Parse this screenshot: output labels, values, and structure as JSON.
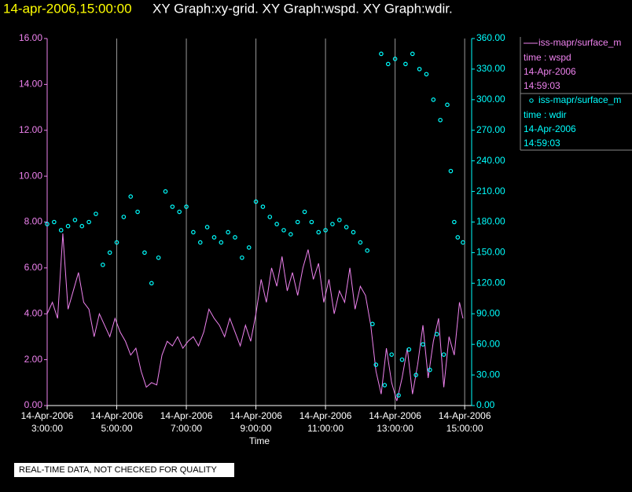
{
  "chart_data": {
    "type": "xy",
    "title_time": "14-apr-2006,15:00:00",
    "title": "XY Graph:xy-grid.  XY Graph:wspd.  XY Graph:wdir.",
    "xlabel": "Time",
    "footer": "REAL-TIME DATA, NOT CHECKED FOR QUALITY",
    "xlim": [
      3,
      15.2
    ],
    "xticks": [
      {
        "value": 3,
        "label": "14-Apr-2006 3:00:00"
      },
      {
        "value": 5,
        "label": "14-Apr-2006 5:00:00"
      },
      {
        "value": 7,
        "label": "14-Apr-2006 7:00:00"
      },
      {
        "value": 9,
        "label": "14-Apr-2006 9:00:00"
      },
      {
        "value": 11,
        "label": "14-Apr-2006 11:00:00"
      },
      {
        "value": 13,
        "label": "14-Apr-2006 13:00:00"
      },
      {
        "value": 15,
        "label": "14-Apr-2006 15:00:00"
      }
    ],
    "ylim": [
      0,
      16
    ],
    "yticks": [
      {
        "value": 0,
        "label": "0.00"
      },
      {
        "value": 2,
        "label": "2.00"
      },
      {
        "value": 4,
        "label": "4.00"
      },
      {
        "value": 6,
        "label": "6.00"
      },
      {
        "value": 8,
        "label": "8.00"
      },
      {
        "value": 10,
        "label": "10.00"
      },
      {
        "value": 12,
        "label": "12.00"
      },
      {
        "value": 14,
        "label": "14.00"
      },
      {
        "value": 16,
        "label": "16.00"
      }
    ],
    "y2lim": [
      0,
      360
    ],
    "y2ticks": [
      {
        "value": 0,
        "label": "0.00"
      },
      {
        "value": 30,
        "label": "30.00"
      },
      {
        "value": 60,
        "label": "60.00"
      },
      {
        "value": 90,
        "label": "90.00"
      },
      {
        "value": 120,
        "label": "120.00"
      },
      {
        "value": 150,
        "label": "150.00"
      },
      {
        "value": 180,
        "label": "180.00"
      },
      {
        "value": 210,
        "label": "210.00"
      },
      {
        "value": 240,
        "label": "240.00"
      },
      {
        "value": 270,
        "label": "270.00"
      },
      {
        "value": 300,
        "label": "300.00"
      },
      {
        "value": 330,
        "label": "330.00"
      },
      {
        "value": 360,
        "label": "360.00"
      }
    ],
    "grid": "x",
    "series": [
      {
        "name": "iss-mapr/surface_m",
        "kind": "line",
        "color": "#ee82ee",
        "legend_lines": [
          "time : wspd",
          "14-Apr-2006",
          "14:59:03"
        ],
        "x": [
          3.0,
          3.15,
          3.3,
          3.45,
          3.6,
          3.75,
          3.9,
          4.05,
          4.2,
          4.35,
          4.5,
          4.65,
          4.8,
          4.95,
          5.1,
          5.25,
          5.4,
          5.55,
          5.7,
          5.85,
          6.0,
          6.15,
          6.3,
          6.45,
          6.6,
          6.75,
          6.9,
          7.05,
          7.2,
          7.35,
          7.5,
          7.65,
          7.8,
          7.95,
          8.1,
          8.25,
          8.4,
          8.55,
          8.7,
          8.85,
          9.0,
          9.15,
          9.3,
          9.45,
          9.6,
          9.75,
          9.9,
          10.05,
          10.2,
          10.35,
          10.5,
          10.65,
          10.8,
          10.95,
          11.1,
          11.25,
          11.4,
          11.55,
          11.7,
          11.85,
          12.0,
          12.15,
          12.3,
          12.45,
          12.6,
          12.75,
          12.9,
          13.05,
          13.2,
          13.35,
          13.5,
          13.65,
          13.8,
          13.95,
          14.1,
          14.25,
          14.4,
          14.55,
          14.7,
          14.85,
          14.95
        ],
        "values": [
          4.0,
          4.5,
          3.8,
          7.5,
          4.2,
          5.0,
          5.8,
          4.5,
          4.2,
          3.0,
          4.0,
          3.5,
          3.0,
          3.8,
          3.2,
          2.8,
          2.2,
          2.5,
          1.5,
          0.8,
          1.0,
          0.9,
          2.2,
          2.8,
          2.6,
          3.0,
          2.5,
          2.8,
          3.0,
          2.6,
          3.2,
          4.2,
          3.8,
          3.5,
          3.0,
          3.8,
          3.2,
          2.6,
          3.5,
          2.8,
          4.0,
          5.5,
          4.5,
          6.0,
          5.2,
          6.5,
          5.0,
          5.8,
          4.8,
          6.0,
          6.8,
          5.5,
          6.2,
          4.5,
          5.5,
          4.0,
          5.0,
          4.5,
          6.0,
          4.2,
          5.2,
          4.8,
          3.5,
          1.5,
          0.5,
          2.5,
          1.0,
          0.2,
          1.2,
          2.5,
          0.5,
          1.8,
          3.5,
          1.2,
          2.8,
          3.8,
          0.8,
          3.0,
          2.2,
          4.5,
          3.8
        ]
      },
      {
        "name": "iss-mapr/surface_m",
        "kind": "scatter",
        "color": "#00ffff",
        "axis": "y2",
        "legend_lines": [
          "time : wdir",
          "14-Apr-2006",
          "14:59:03"
        ],
        "x": [
          3.0,
          3.2,
          3.4,
          3.6,
          3.8,
          4.0,
          4.2,
          4.4,
          4.6,
          4.8,
          5.0,
          5.2,
          5.4,
          5.6,
          5.8,
          6.0,
          6.2,
          6.4,
          6.6,
          6.8,
          7.0,
          7.2,
          7.4,
          7.6,
          7.8,
          8.0,
          8.2,
          8.4,
          8.6,
          8.8,
          9.0,
          9.2,
          9.4,
          9.6,
          9.8,
          10.0,
          10.2,
          10.4,
          10.6,
          10.8,
          11.0,
          11.2,
          11.4,
          11.6,
          11.8,
          12.0,
          12.2,
          12.35,
          12.45,
          12.6,
          12.7,
          12.8,
          12.9,
          13.0,
          13.1,
          13.2,
          13.3,
          13.4,
          13.5,
          13.6,
          13.7,
          13.8,
          13.9,
          14.0,
          14.1,
          14.2,
          14.3,
          14.4,
          14.5,
          14.6,
          14.7,
          14.8,
          14.95
        ],
        "values": [
          178,
          180,
          172,
          176,
          182,
          176,
          180,
          188,
          138,
          150,
          160,
          185,
          205,
          190,
          150,
          120,
          145,
          210,
          195,
          190,
          195,
          170,
          160,
          175,
          165,
          160,
          170,
          165,
          145,
          155,
          200,
          195,
          185,
          178,
          172,
          168,
          180,
          190,
          180,
          170,
          172,
          178,
          182,
          175,
          170,
          160,
          152,
          80,
          40,
          345,
          20,
          335,
          50,
          340,
          10,
          45,
          335,
          55,
          345,
          30,
          330,
          60,
          325,
          35,
          300,
          70,
          280,
          50,
          295,
          230,
          180,
          165,
          160
        ]
      }
    ]
  }
}
